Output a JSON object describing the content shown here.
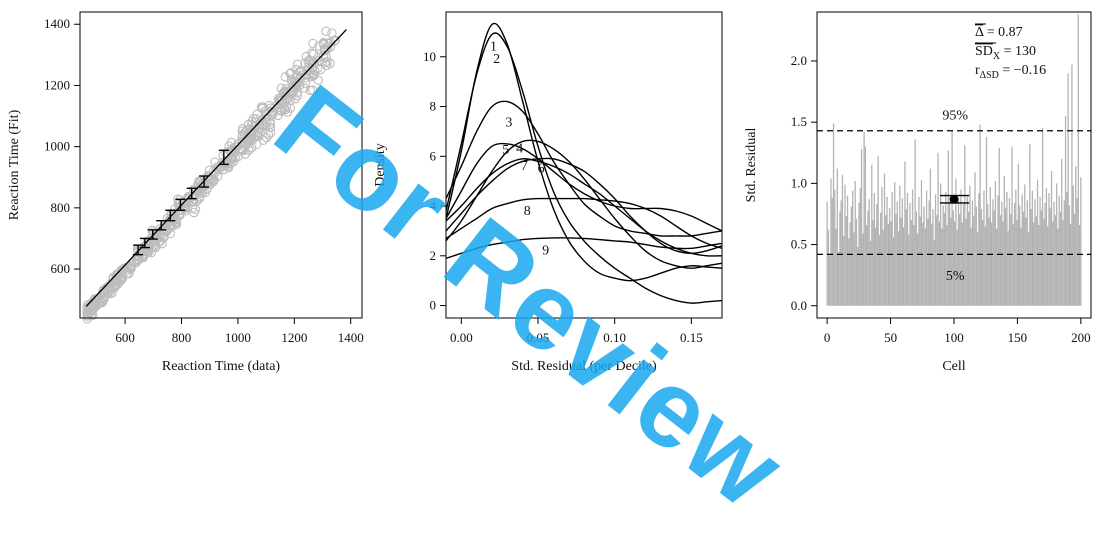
{
  "watermark_text": "For Review",
  "chart_data": [
    {
      "type": "scatter",
      "xlabel": "Reaction Time (data)",
      "ylabel": "Reaction Time (Fit)",
      "xlim": [
        440,
        1440
      ],
      "ylim": [
        440,
        1440
      ],
      "xticks": [
        "600",
        "800",
        "1000",
        "1200",
        "1400"
      ],
      "yticks": [
        "600",
        "800",
        "1000",
        "1200",
        "1400"
      ],
      "point_color": "#bdbdbd",
      "line_color": "#000000",
      "fit_line": {
        "x": [
          462,
          1385
        ],
        "y": [
          478,
          1383
        ]
      },
      "errorbars": [
        {
          "x": 646,
          "y": 662,
          "low": 647,
          "high": 678
        },
        {
          "x": 670,
          "y": 686,
          "low": 670,
          "high": 700
        },
        {
          "x": 698,
          "y": 714,
          "low": 698,
          "high": 728
        },
        {
          "x": 728,
          "y": 744,
          "low": 728,
          "high": 758
        },
        {
          "x": 760,
          "y": 776,
          "low": 758,
          "high": 792
        },
        {
          "x": 796,
          "y": 810,
          "low": 792,
          "high": 828
        },
        {
          "x": 836,
          "y": 846,
          "low": 830,
          "high": 864
        },
        {
          "x": 880,
          "y": 886,
          "low": 868,
          "high": 904
        },
        {
          "x": 950,
          "y": 964,
          "low": 942,
          "high": 988
        }
      ]
    },
    {
      "type": "line",
      "xlabel": "Std. Residual (per Decile)",
      "ylabel": "Density",
      "xlim": [
        -0.01,
        0.17
      ],
      "ylim": [
        -0.5,
        11.8
      ],
      "xticks": [
        "0.00",
        "0.05",
        "0.10",
        "0.15"
      ],
      "yticks": [
        "0",
        "2",
        "4",
        "6",
        "8",
        "10"
      ],
      "series": [
        {
          "label": "1",
          "x": [
            -0.01,
            0,
            0.01,
            0.02,
            0.03,
            0.04,
            0.05,
            0.06,
            0.07,
            0.08,
            0.09,
            0.1,
            0.11,
            0.12,
            0.13,
            0.14,
            0.15,
            0.16,
            0.17
          ],
          "y": [
            3.5,
            6.2,
            9.4,
            11.3,
            10.5,
            8.2,
            5.8,
            3.9,
            2.6,
            1.8,
            1.3,
            1.1,
            1.0,
            1.1,
            1.3,
            1.5,
            1.6,
            1.55,
            1.5
          ],
          "label_at": [
            0.021,
            10.25
          ]
        },
        {
          "label": "2",
          "x": [
            -0.01,
            0,
            0.01,
            0.02,
            0.03,
            0.04,
            0.05,
            0.06,
            0.07,
            0.08,
            0.09,
            0.1,
            0.11,
            0.12,
            0.13,
            0.14,
            0.15,
            0.16,
            0.17
          ],
          "y": [
            3.8,
            6.5,
            9.3,
            10.9,
            10.4,
            8.6,
            6.4,
            4.6,
            3.4,
            2.6,
            2.0,
            1.5,
            1.1,
            0.7,
            0.4,
            0.2,
            0.1,
            0.15,
            0.2
          ],
          "label_at": [
            0.023,
            9.75
          ]
        },
        {
          "label": "3",
          "x": [
            -0.01,
            0,
            0.01,
            0.02,
            0.03,
            0.04,
            0.05,
            0.06,
            0.07,
            0.08,
            0.09,
            0.1,
            0.11,
            0.12,
            0.13,
            0.14,
            0.15,
            0.16,
            0.17
          ],
          "y": [
            4.3,
            5.6,
            7.0,
            8.0,
            8.2,
            7.8,
            6.9,
            5.8,
            4.9,
            4.1,
            3.6,
            3.2,
            3.0,
            2.9,
            2.8,
            2.8,
            2.8,
            2.9,
            3.0
          ],
          "label_at": [
            0.031,
            7.2
          ]
        },
        {
          "label": "4",
          "x": [
            -0.01,
            0,
            0.01,
            0.02,
            0.03,
            0.04,
            0.05,
            0.06,
            0.07,
            0.08,
            0.09,
            0.1,
            0.11,
            0.12,
            0.13,
            0.14,
            0.15,
            0.16,
            0.17
          ],
          "y": [
            2.6,
            3.4,
            4.4,
            5.4,
            6.2,
            6.6,
            6.6,
            6.3,
            5.8,
            5.1,
            4.3,
            3.5,
            2.8,
            2.2,
            1.8,
            1.6,
            1.5,
            1.6,
            1.7
          ],
          "label_at": [
            0.038,
            6.15
          ]
        },
        {
          "label": "5",
          "x": [
            -0.01,
            0,
            0.01,
            0.02,
            0.03,
            0.04,
            0.05,
            0.06,
            0.07,
            0.08,
            0.09,
            0.1,
            0.11,
            0.12,
            0.13,
            0.14,
            0.15,
            0.16,
            0.17
          ],
          "y": [
            3.5,
            4.6,
            5.7,
            6.4,
            6.5,
            6.3,
            5.9,
            5.4,
            4.9,
            4.5,
            4.2,
            4.0,
            3.9,
            3.9,
            3.9,
            3.8,
            3.6,
            3.3,
            3.0
          ],
          "label_at": [
            0.029,
            6.1
          ]
        },
        {
          "label": "6",
          "x": [
            -0.01,
            0,
            0.01,
            0.02,
            0.03,
            0.04,
            0.05,
            0.06,
            0.07,
            0.08,
            0.09,
            0.1,
            0.11,
            0.12,
            0.13,
            0.14,
            0.15,
            0.16,
            0.17
          ],
          "y": [
            3.0,
            3.7,
            4.4,
            5.0,
            5.5,
            5.8,
            5.9,
            5.9,
            5.7,
            5.4,
            4.9,
            4.3,
            3.6,
            3.0,
            2.5,
            2.2,
            2.1,
            2.2,
            2.4
          ],
          "label_at": [
            0.052,
            5.35
          ]
        },
        {
          "label": "7",
          "x": [
            -0.01,
            0,
            0.01,
            0.02,
            0.03,
            0.04,
            0.05,
            0.06,
            0.07,
            0.08,
            0.09,
            0.1,
            0.11,
            0.12,
            0.13,
            0.14,
            0.15,
            0.16,
            0.17
          ],
          "y": [
            3.4,
            4.0,
            4.7,
            5.3,
            5.7,
            5.9,
            5.8,
            5.6,
            5.3,
            4.9,
            4.5,
            4.0,
            3.5,
            3.0,
            2.6,
            2.3,
            2.1,
            2.0,
            2.0
          ],
          "label_at": [
            0.041,
            5.45
          ]
        },
        {
          "label": "8",
          "x": [
            -0.01,
            0,
            0.01,
            0.02,
            0.03,
            0.04,
            0.05,
            0.06,
            0.07,
            0.08,
            0.09,
            0.1,
            0.11,
            0.12,
            0.13,
            0.14,
            0.15,
            0.16,
            0.17
          ],
          "y": [
            2.7,
            3.1,
            3.5,
            3.9,
            4.1,
            4.25,
            4.3,
            4.3,
            4.3,
            4.3,
            4.25,
            4.2,
            4.1,
            3.9,
            3.6,
            3.2,
            2.8,
            2.5,
            2.3
          ],
          "label_at": [
            0.043,
            3.65
          ]
        },
        {
          "label": "9",
          "x": [
            -0.01,
            0,
            0.01,
            0.02,
            0.03,
            0.04,
            0.05,
            0.06,
            0.07,
            0.08,
            0.09,
            0.1,
            0.11,
            0.12,
            0.13,
            0.14,
            0.15,
            0.16,
            0.17
          ],
          "y": [
            1.9,
            2.1,
            2.3,
            2.45,
            2.55,
            2.65,
            2.7,
            2.72,
            2.72,
            2.7,
            2.65,
            2.6,
            2.55,
            2.45,
            2.35,
            2.3,
            2.3,
            2.4,
            2.5
          ],
          "label_at": [
            0.055,
            2.05
          ]
        }
      ]
    },
    {
      "type": "bar",
      "xlabel": "Cell",
      "ylabel": "Std. Residual",
      "xlim": [
        -8,
        208
      ],
      "ylim": [
        -0.1,
        2.4
      ],
      "xticks": [
        "0",
        "50",
        "100",
        "150",
        "200"
      ],
      "yticks": [
        "0.0",
        "0.5",
        "1.0",
        "1.5",
        "2.0"
      ],
      "bar_color": "#b3b3b3",
      "hlines": [
        {
          "y": 1.43,
          "label": "95%",
          "label_x": 101,
          "label_y": 1.52
        },
        {
          "y": 0.42,
          "label": "5%",
          "label_x": 101,
          "label_y": 0.21
        }
      ],
      "point": {
        "x": 100,
        "y": 0.87,
        "low": 0.84,
        "high": 0.9,
        "whisker_from": 89,
        "whisker_to": 112
      },
      "stats": [
        {
          "symbol": "Δ",
          "sub": "",
          "text": " = 0.87"
        },
        {
          "symbol": "SD",
          "sub": "X",
          "text": " = 130"
        },
        {
          "symbol": "r",
          "sub": "ΔSD",
          "text": " = −0.16"
        }
      ],
      "values": [
        0.85,
        0.62,
        0.41,
        1.04,
        0.88,
        1.49,
        0.95,
        0.63,
        1.12,
        0.44,
        0.77,
        0.86,
        1.07,
        0.57,
        0.99,
        0.73,
        0.9,
        0.55,
        0.68,
        0.81,
        0.94,
        0.6,
        1.02,
        0.71,
        0.48,
        0.84,
        0.96,
        1.28,
        0.59,
        1.42,
        1.3,
        0.66,
        0.78,
        0.87,
        0.53,
        1.15,
        0.7,
        0.92,
        0.64,
        0.83,
        1.22,
        0.58,
        0.76,
        0.97,
        0.62,
        1.08,
        0.74,
        0.89,
        0.67,
        0.8,
        0.69,
        0.93,
        0.56,
        1.01,
        0.75,
        0.85,
        0.61,
        0.98,
        0.72,
        0.88,
        0.64,
        1.18,
        0.79,
        0.92,
        0.58,
        0.84,
        0.7,
        0.95,
        0.66,
        1.36,
        0.77,
        0.59,
        0.89,
        0.73,
        1.03,
        0.68,
        0.81,
        0.63,
        0.94,
        0.71,
        0.86,
        1.12,
        0.67,
        0.79,
        0.54,
        0.91,
        0.74,
        1.25,
        0.69,
        1.0,
        0.63,
        0.82,
        0.76,
        0.93,
        0.66,
        1.27,
        0.85,
        0.72,
        1.43,
        0.78,
        0.69,
        1.04,
        0.62,
        0.88,
        0.75,
        0.95,
        0.68,
        0.83,
        1.31,
        0.71,
        0.89,
        0.77,
        0.98,
        0.64,
        0.86,
        0.73,
        1.09,
        0.81,
        0.6,
        0.92,
        1.48,
        0.79,
        0.7,
        0.94,
        0.65,
        1.38,
        0.83,
        0.72,
        0.97,
        0.68,
        0.87,
        0.78,
        1.02,
        0.63,
        0.9,
        1.29,
        0.74,
        0.85,
        0.69,
        1.06,
        0.8,
        0.93,
        0.61,
        0.88,
        0.75,
        1.3,
        0.67,
        0.84,
        0.95,
        0.7,
        1.16,
        0.82,
        0.64,
        0.91,
        0.77,
        0.99,
        0.72,
        0.86,
        0.6,
        1.32,
        0.79,
        0.94,
        0.68,
        0.87,
        0.73,
        1.03,
        0.66,
        0.89,
        0.78,
        1.45,
        0.71,
        0.84,
        0.96,
        0.65,
        0.92,
        0.8,
        1.1,
        0.69,
        0.85,
        0.74,
        1.0,
        0.63,
        0.9,
        0.77,
        1.2,
        0.7,
        0.86,
        1.55,
        0.93,
        1.9,
        0.82,
        0.67,
        1.97,
        0.98,
        0.75,
        1.14,
        0.88,
        2.38,
        0.66,
        1.05
      ]
    }
  ]
}
